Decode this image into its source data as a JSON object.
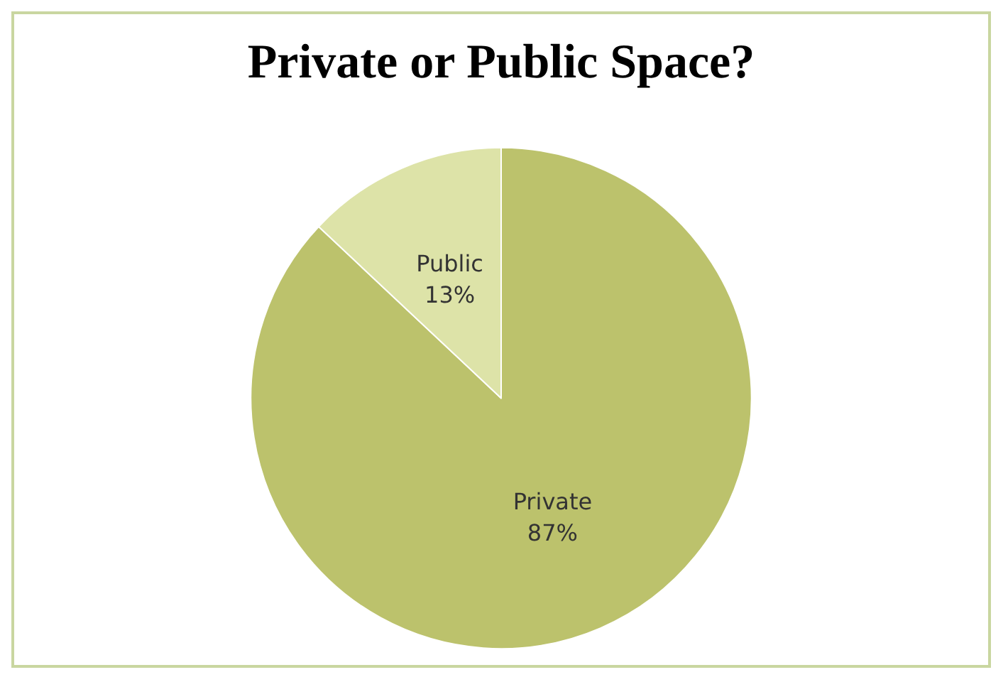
{
  "chart_data": {
    "type": "pie",
    "title": "Private or Public Space?",
    "categories": [
      "Private",
      "Public"
    ],
    "values": [
      87,
      13
    ],
    "colors": [
      "#bcc26c",
      "#dde3a8"
    ],
    "value_labels": [
      "87%",
      "13%"
    ],
    "legend": false
  }
}
